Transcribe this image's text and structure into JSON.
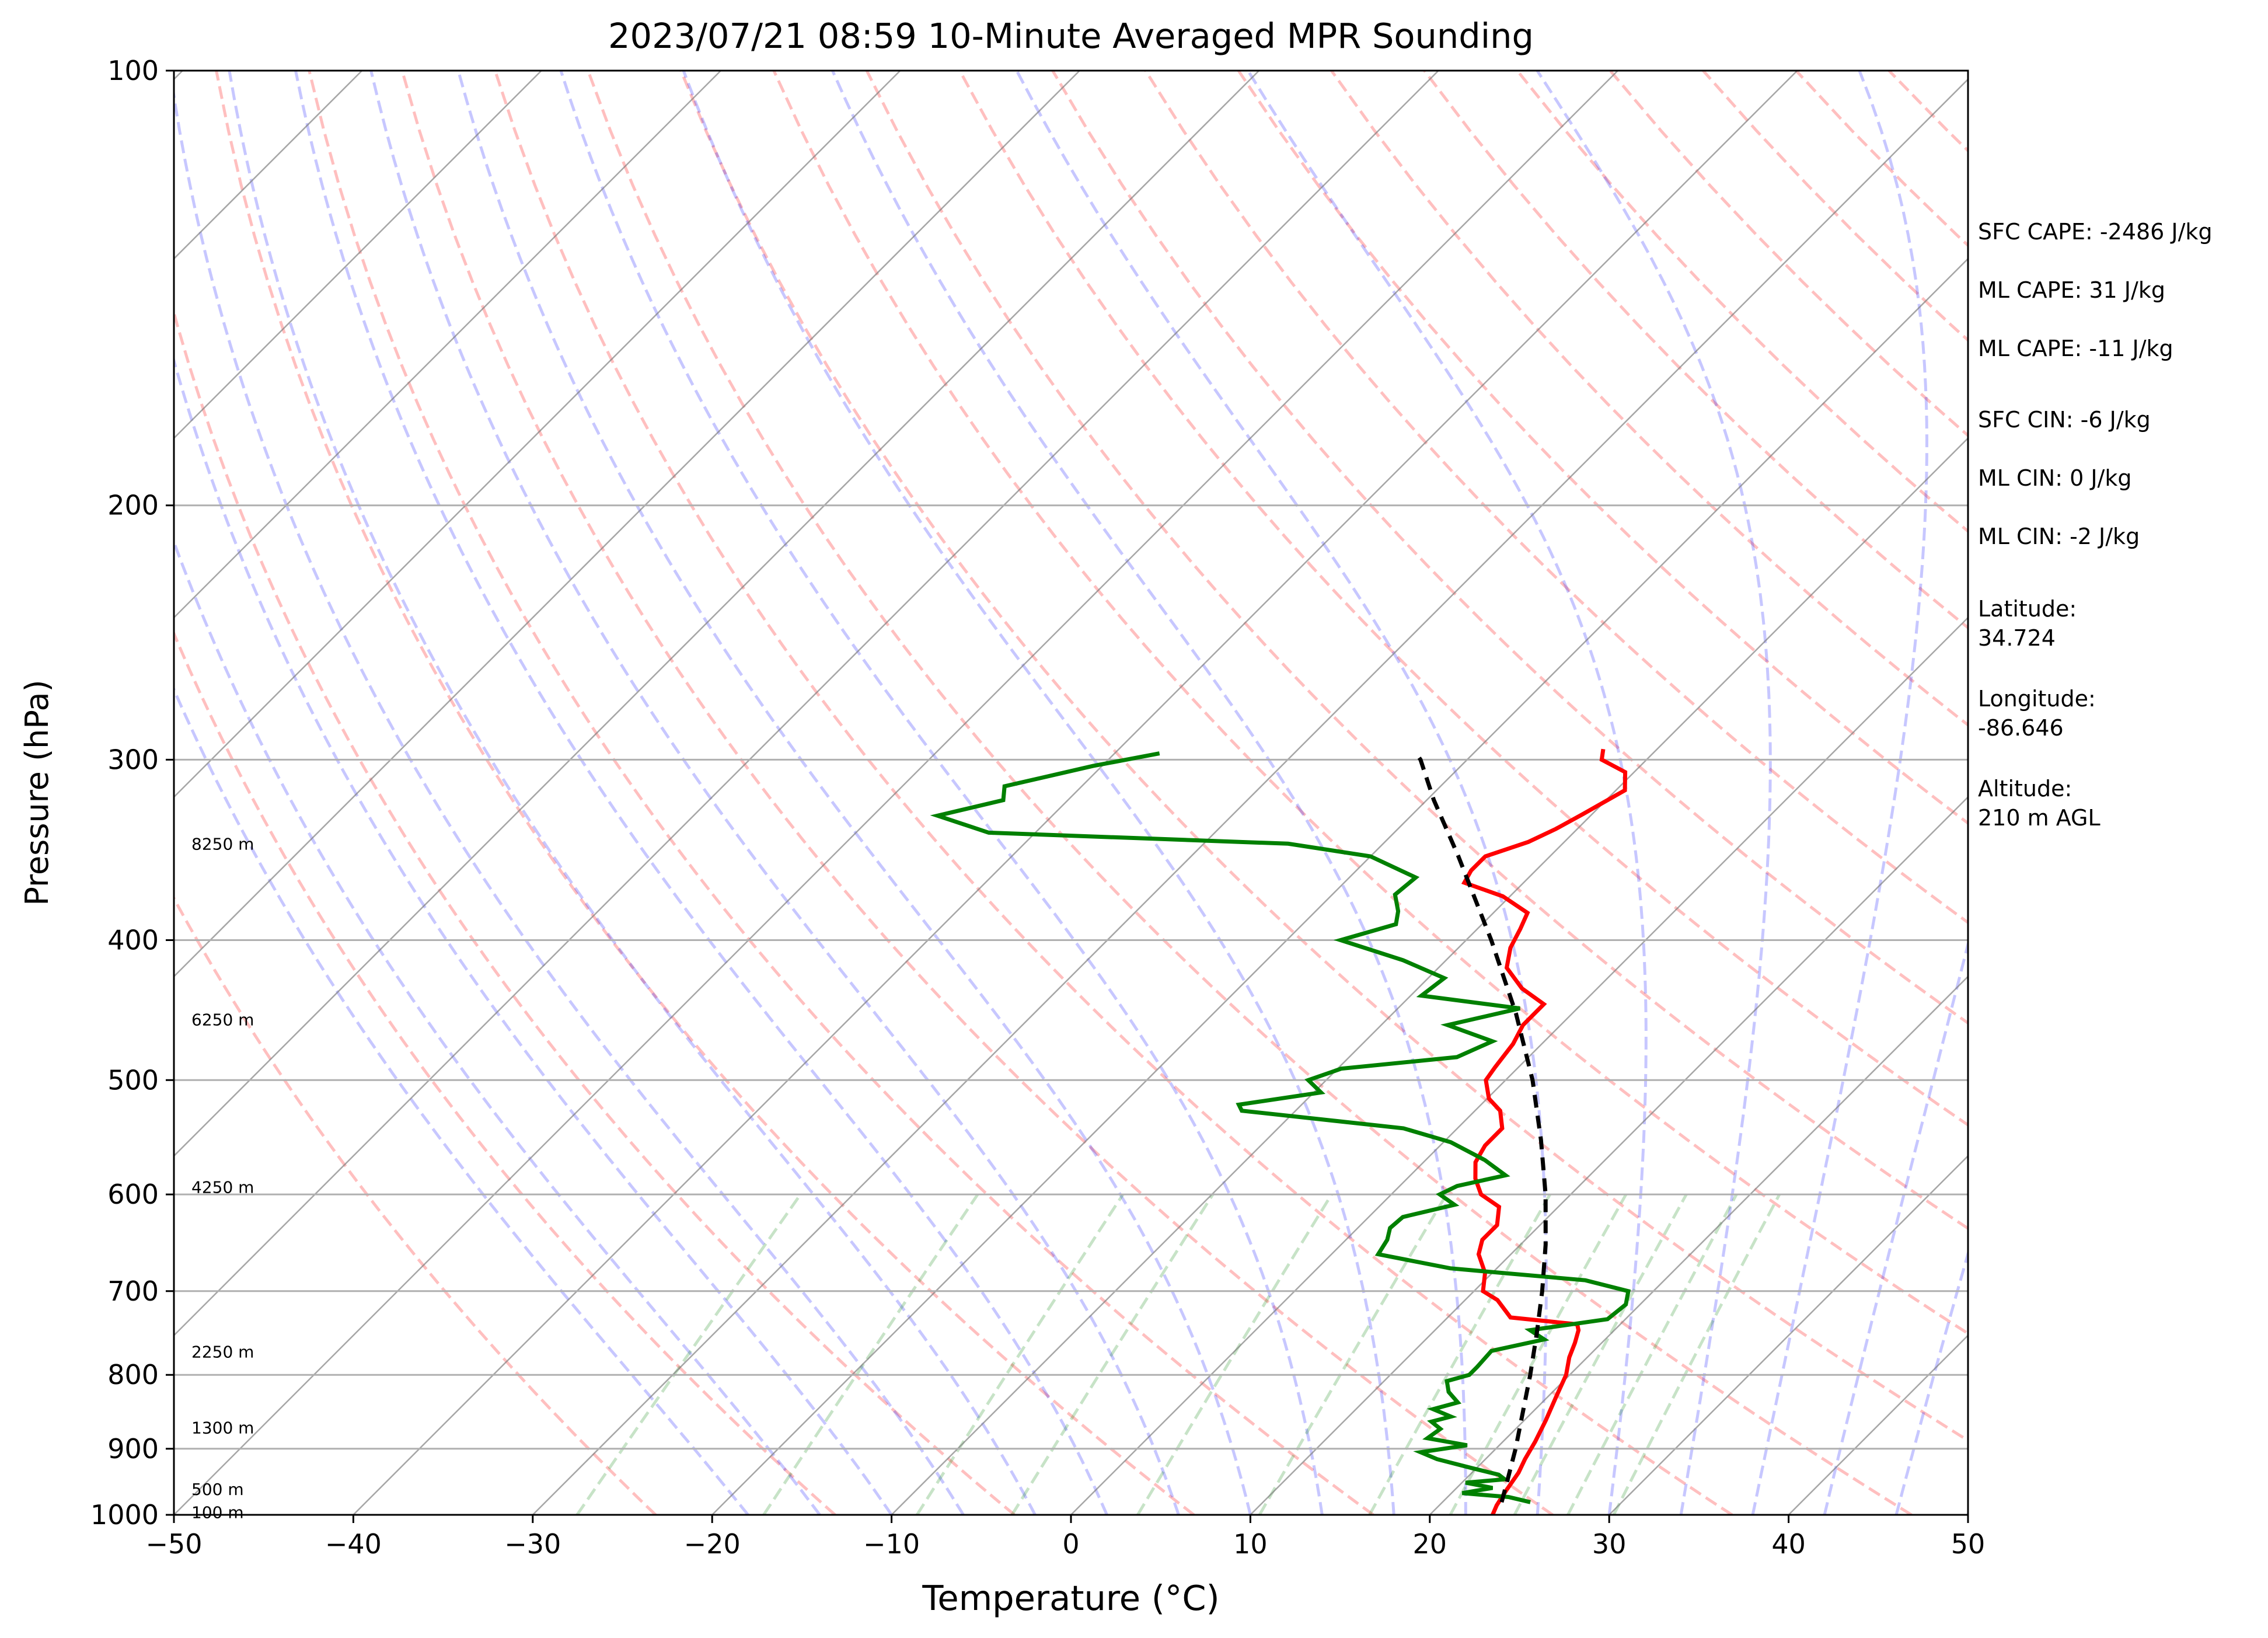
{
  "chart_data": {
    "type": "line",
    "title": "2023/07/21 08:59 10-Minute Averaged MPR Sounding",
    "xlabel": "Temperature (°C)",
    "ylabel": "Pressure (hPa)",
    "xlim": [
      -50,
      50
    ],
    "ylim": [
      1000,
      100
    ],
    "y_scale": "log",
    "x_ticks": [
      "−50",
      "−40",
      "−30",
      "−20",
      "−10",
      "0",
      "10",
      "20",
      "30",
      "40",
      "50"
    ],
    "x_tick_values": [
      -50,
      -40,
      -30,
      -20,
      -10,
      0,
      10,
      20,
      30,
      40,
      50
    ],
    "y_ticks": [
      "100",
      "200",
      "300",
      "400",
      "500",
      "600",
      "700",
      "800",
      "900",
      "1000"
    ],
    "y_tick_values": [
      100,
      200,
      300,
      400,
      500,
      600,
      700,
      800,
      900,
      1000
    ],
    "grid": "horizontal at pressure ticks",
    "skew_lines_note": "skewed isotherms every 10 °C; dry adiabats (red dashed), moist adiabats (blue dashed), mixing ratio lines (green dashed)",
    "height_labels": [
      {
        "text": "8250 m",
        "p": 343
      },
      {
        "text": "6250 m",
        "p": 454
      },
      {
        "text": "4250 m",
        "p": 593
      },
      {
        "text": "2250 m",
        "p": 771
      },
      {
        "text": "1300 m",
        "p": 870
      },
      {
        "text": "500 m",
        "p": 960
      },
      {
        "text": "100 m",
        "p": 996
      }
    ],
    "series": [
      {
        "name": "",
        "color": "#ff0000",
        "points": [
          [
            1000,
            23.5
          ],
          [
            985,
            23.2
          ],
          [
            962,
            22.9
          ],
          [
            935,
            22.6
          ],
          [
            915,
            22.2
          ],
          [
            890,
            21.8
          ],
          [
            860,
            21.2
          ],
          [
            830,
            20.5
          ],
          [
            800,
            19.8
          ],
          [
            778,
            19.0
          ],
          [
            760,
            18.5
          ],
          [
            745,
            18.0
          ],
          [
            738,
            17.6
          ],
          [
            730,
            13.5
          ],
          [
            710,
            11.8
          ],
          [
            700,
            10.5
          ],
          [
            680,
            9.6
          ],
          [
            660,
            8.2
          ],
          [
            645,
            7.6
          ],
          [
            630,
            7.6
          ],
          [
            612,
            6.7
          ],
          [
            600,
            5.0
          ],
          [
            585,
            3.8
          ],
          [
            570,
            2.9
          ],
          [
            555,
            2.5
          ],
          [
            540,
            2.5
          ],
          [
            525,
            1.4
          ],
          [
            515,
            0.1
          ],
          [
            500,
            -1.1
          ],
          [
            490,
            -1.3
          ],
          [
            472,
            -1.6
          ],
          [
            458,
            -2.1
          ],
          [
            443,
            -2.1
          ],
          [
            432,
            -4.2
          ],
          [
            418,
            -6.2
          ],
          [
            405,
            -7.1
          ],
          [
            393,
            -7.6
          ],
          [
            383,
            -8.1
          ],
          [
            373,
            -10.4
          ],
          [
            365,
            -13.3
          ],
          [
            358,
            -13.6
          ],
          [
            350,
            -13.6
          ],
          [
            342,
            -12.0
          ],
          [
            335,
            -11.2
          ],
          [
            327,
            -10.5
          ],
          [
            315,
            -9.5
          ],
          [
            306,
            -10.5
          ],
          [
            300,
            -12.5
          ],
          [
            295,
            -13.0
          ]
        ]
      },
      {
        "name": "",
        "color": "#008000",
        "points": [
          [
            980,
            24.9
          ],
          [
            972,
            23.4
          ],
          [
            966,
            20.6
          ],
          [
            958,
            22.0
          ],
          [
            950,
            20.2
          ],
          [
            945,
            22.2
          ],
          [
            938,
            21.6
          ],
          [
            928,
            19.7
          ],
          [
            915,
            17.3
          ],
          [
            905,
            16.0
          ],
          [
            895,
            18.2
          ],
          [
            885,
            15.6
          ],
          [
            872,
            15.8
          ],
          [
            862,
            14.9
          ],
          [
            855,
            15.7
          ],
          [
            845,
            14.3
          ],
          [
            836,
            15.3
          ],
          [
            822,
            14.2
          ],
          [
            808,
            13.5
          ],
          [
            800,
            14.4
          ],
          [
            790,
            14.4
          ],
          [
            770,
            14.3
          ],
          [
            756,
            16.6
          ],
          [
            745,
            15.3
          ],
          [
            732,
            19.0
          ],
          [
            715,
            19.2
          ],
          [
            700,
            18.6
          ],
          [
            688,
            15.6
          ],
          [
            675,
            7.4
          ],
          [
            660,
            2.6
          ],
          [
            645,
            2.3
          ],
          [
            633,
            1.8
          ],
          [
            622,
            1.9
          ],
          [
            610,
            4.1
          ],
          [
            600,
            2.7
          ],
          [
            592,
            3.2
          ],
          [
            582,
            5.3
          ],
          [
            568,
            3.3
          ],
          [
            552,
            0.4
          ],
          [
            540,
            -3.0
          ],
          [
            525,
            -13.0
          ],
          [
            520,
            -13.5
          ],
          [
            510,
            -9.6
          ],
          [
            500,
            -11.0
          ],
          [
            491,
            -9.8
          ],
          [
            482,
            -4.0
          ],
          [
            470,
            -2.9
          ],
          [
            458,
            -6.3
          ],
          [
            446,
            -3.2
          ],
          [
            437,
            -9.4
          ],
          [
            425,
            -9.1
          ],
          [
            413,
            -12.4
          ],
          [
            400,
            -17.0
          ],
          [
            390,
            -14.8
          ],
          [
            382,
            -15.4
          ],
          [
            372,
            -16.5
          ],
          [
            362,
            -16.3
          ],
          [
            350,
            -20.0
          ],
          [
            343,
            -25.3
          ],
          [
            337,
            -42.6
          ],
          [
            328,
            -46.4
          ],
          [
            320,
            -43.6
          ],
          [
            313,
            -44.3
          ],
          [
            303,
            -40.5
          ],
          [
            297,
            -37.5
          ]
        ]
      },
      {
        "name": "",
        "color": "#000000",
        "dashed": true,
        "points": [
          [
            980,
            23.3
          ],
          [
            950,
            22.5
          ],
          [
            900,
            21.1
          ],
          [
            850,
            19.5
          ],
          [
            800,
            17.8
          ],
          [
            750,
            15.9
          ],
          [
            700,
            13.8
          ],
          [
            650,
            11.4
          ],
          [
            600,
            8.6
          ],
          [
            550,
            5.3
          ],
          [
            500,
            1.5
          ],
          [
            450,
            -3.1
          ],
          [
            400,
            -8.6
          ],
          [
            350,
            -15.1
          ],
          [
            320,
            -19.6
          ],
          [
            300,
            -22.6
          ],
          [
            298,
            -23.0
          ]
        ]
      }
    ]
  },
  "stats": [
    "SFC CAPE: -2486 J/kg",
    "ML CAPE: 31 J/kg",
    "ML CAPE: -11 J/kg",
    "SFC CIN: -6 J/kg",
    "ML CIN: 0 J/kg",
    "ML CIN: -2 J/kg"
  ],
  "location": {
    "latitude_label": "Latitude:",
    "latitude": "34.724",
    "longitude_label": "Longitude:",
    "longitude": "-86.646",
    "altitude_label": "Altitude:",
    "altitude": "210 m AGL"
  }
}
